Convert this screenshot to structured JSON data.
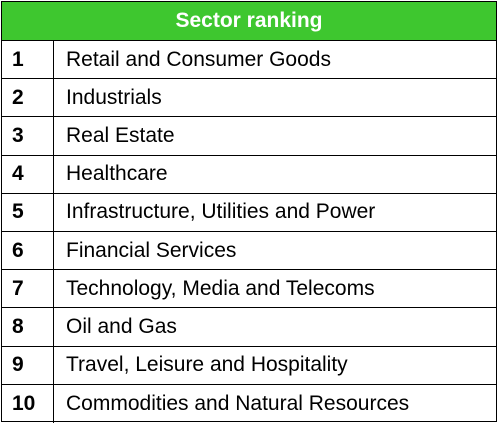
{
  "table": {
    "title": "Sector ranking",
    "header_color": "#3ec72f",
    "rows": [
      {
        "rank": "1",
        "sector": "Retail and Consumer Goods"
      },
      {
        "rank": "2",
        "sector": "Industrials"
      },
      {
        "rank": "3",
        "sector": "Real Estate"
      },
      {
        "rank": "4",
        "sector": "Healthcare"
      },
      {
        "rank": "5",
        "sector": "Infrastructure, Utilities and Power"
      },
      {
        "rank": "6",
        "sector": "Financial Services"
      },
      {
        "rank": "7",
        "sector": "Technology, Media and Telecoms"
      },
      {
        "rank": "8",
        "sector": "Oil and Gas"
      },
      {
        "rank": "9",
        "sector": "Travel, Leisure and Hospitality"
      },
      {
        "rank": "10",
        "sector": "Commodities and Natural Resources"
      }
    ]
  }
}
